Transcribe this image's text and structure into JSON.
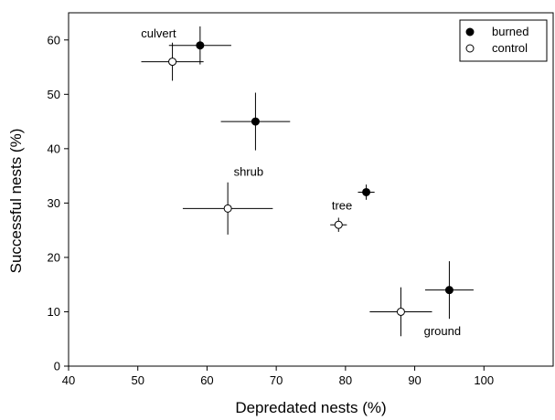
{
  "chart_data": {
    "type": "scatter",
    "xlabel": "Depredated nests (%)",
    "ylabel": "Successful nests (%)",
    "xlim": [
      40,
      110
    ],
    "ylim": [
      0,
      65
    ],
    "x_ticks": [
      40,
      50,
      60,
      70,
      80,
      90,
      100
    ],
    "y_ticks": [
      0,
      10,
      20,
      30,
      40,
      50,
      60
    ],
    "grid": false,
    "legend_position": "top-right",
    "series": [
      {
        "name": "burned",
        "marker": "filled-circle",
        "color": "#000000",
        "points": [
          {
            "x": 59,
            "y": 59,
            "xerr": 4.5,
            "yerr": 3.5
          },
          {
            "x": 67,
            "y": 45,
            "xerr": 5,
            "yerr": 5.3
          },
          {
            "x": 83,
            "y": 32,
            "xerr": 1.2,
            "yerr": 1.4
          },
          {
            "x": 95,
            "y": 14,
            "xerr": 3.5,
            "yerr": 5.3
          }
        ]
      },
      {
        "name": "control",
        "marker": "open-circle",
        "color": "#000000",
        "points": [
          {
            "x": 55,
            "y": 56,
            "xerr": 4.5,
            "yerr": 3.5
          },
          {
            "x": 63,
            "y": 29,
            "xerr": 6.5,
            "yerr": 4.8
          },
          {
            "x": 79,
            "y": 26,
            "xerr": 1.2,
            "yerr": 1.3
          },
          {
            "x": 88,
            "y": 10,
            "xerr": 4.5,
            "yerr": 4.5
          }
        ]
      }
    ],
    "annotations": [
      {
        "text": "culvert",
        "x": 53,
        "y": 60.5
      },
      {
        "text": "shrub",
        "x": 66,
        "y": 35
      },
      {
        "text": "tree",
        "x": 79.5,
        "y": 28.8
      },
      {
        "text": "ground",
        "x": 94,
        "y": 5.7
      }
    ]
  }
}
